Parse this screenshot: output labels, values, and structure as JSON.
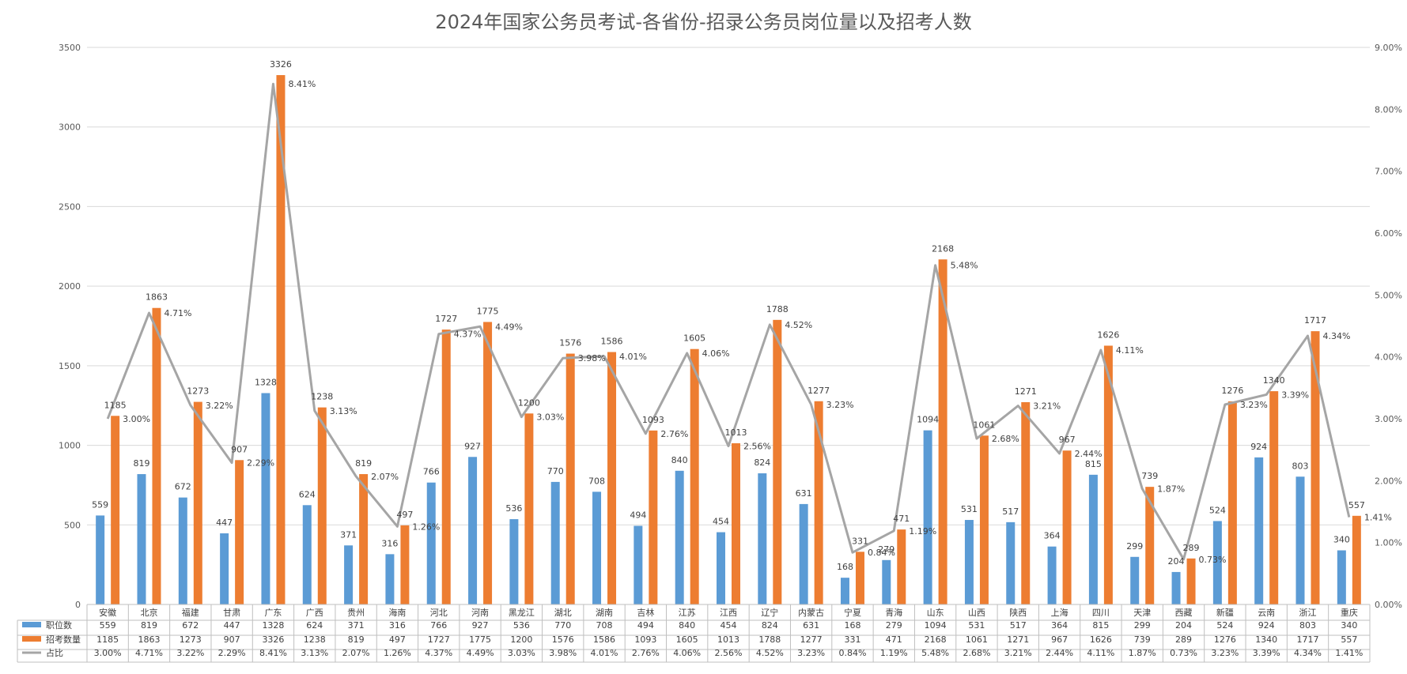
{
  "chart_data": {
    "type": "bar",
    "title": "2024年国家公务员考试-各省份-招录公务员岗位量以及招考人数",
    "categories": [
      "安徽",
      "北京",
      "福建",
      "甘肃",
      "广东",
      "广西",
      "贵州",
      "海南",
      "河北",
      "河南",
      "黑龙江",
      "湖北",
      "湖南",
      "吉林",
      "江苏",
      "江西",
      "辽宁",
      "内蒙古",
      "宁夏",
      "青海",
      "山东",
      "山西",
      "陕西",
      "上海",
      "四川",
      "天津",
      "西藏",
      "新疆",
      "云南",
      "浙江",
      "重庆"
    ],
    "series": [
      {
        "name": "职位数",
        "type": "bar",
        "axis": "left",
        "color": "#5B9BD5",
        "values": [
          559,
          819,
          672,
          447,
          1328,
          624,
          371,
          316,
          766,
          927,
          536,
          770,
          708,
          494,
          840,
          454,
          824,
          631,
          168,
          279,
          1094,
          531,
          517,
          364,
          815,
          299,
          204,
          524,
          924,
          803,
          340
        ]
      },
      {
        "name": "招考数量",
        "type": "bar",
        "axis": "left",
        "color": "#ED7D31",
        "values": [
          1185,
          1863,
          1273,
          907,
          3326,
          1238,
          819,
          497,
          1727,
          1775,
          1200,
          1576,
          1586,
          1093,
          1605,
          1013,
          1788,
          1277,
          331,
          471,
          2168,
          1061,
          1271,
          967,
          1626,
          739,
          289,
          1276,
          1340,
          1717,
          557
        ]
      },
      {
        "name": "占比",
        "type": "line",
        "axis": "right",
        "color": "#A5A5A5",
        "values": [
          3.0,
          4.71,
          3.22,
          2.29,
          8.41,
          3.13,
          2.07,
          1.26,
          4.37,
          4.49,
          3.03,
          3.98,
          4.01,
          2.76,
          4.06,
          2.56,
          4.52,
          3.23,
          0.84,
          1.19,
          5.48,
          2.68,
          3.21,
          2.44,
          4.11,
          1.87,
          0.73,
          3.23,
          3.39,
          4.34,
          1.41
        ],
        "labels": [
          "3.00%",
          "4.71%",
          "3.22%",
          "2.29%",
          "8.41%",
          "3.13%",
          "2.07%",
          "1.26%",
          "4.37%",
          "4.49%",
          "3.03%",
          "3.98%",
          "4.01%",
          "2.76%",
          "4.06%",
          "2.56%",
          "4.52%",
          "3.23%",
          "0.84%",
          "1.19%",
          "5.48%",
          "2.68%",
          "3.21%",
          "2.44%",
          "4.11%",
          "1.87%",
          "0.73%",
          "3.23%",
          "3.39%",
          "4.34%",
          "1.41%"
        ]
      }
    ],
    "ylim": [
      0,
      3500
    ],
    "yticks": [
      "0",
      "500",
      "1000",
      "1500",
      "2000",
      "2500",
      "3000",
      "3500"
    ],
    "y2lim": [
      0,
      9
    ],
    "y2ticks": [
      "0.00%",
      "1.00%",
      "2.00%",
      "3.00%",
      "4.00%",
      "5.00%",
      "6.00%",
      "7.00%",
      "8.00%",
      "9.00%"
    ],
    "grid": true,
    "legend": "data-table-below"
  }
}
